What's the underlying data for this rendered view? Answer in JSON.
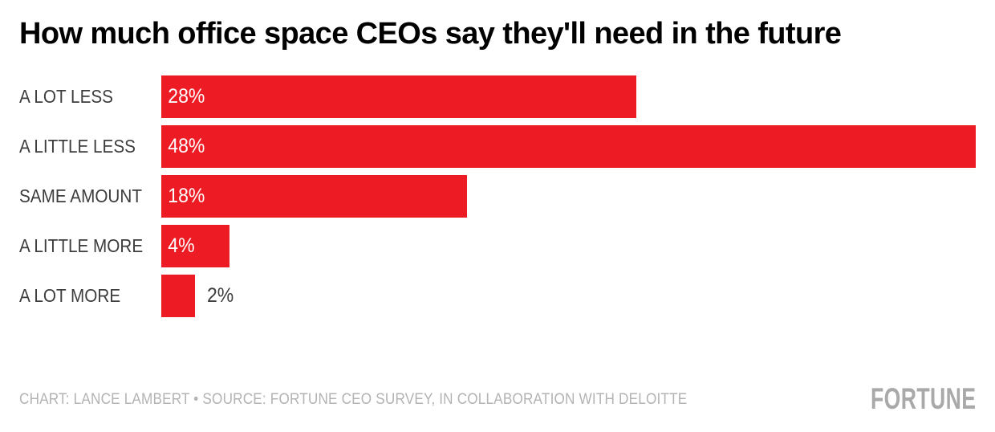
{
  "page": {
    "background": "#ffffff"
  },
  "header": {
    "title": "How much office space CEOs say they'll need in the future"
  },
  "chart_data": {
    "type": "bar",
    "orientation": "horizontal",
    "title": "How much office space CEOs say they'll need in the future",
    "categories": [
      "A LOT LESS",
      "A LITTLE LESS",
      "SAME AMOUNT",
      "A LITTLE MORE",
      "A LOT MORE"
    ],
    "values": [
      28,
      48,
      18,
      4,
      2
    ],
    "value_labels": [
      "28%",
      "48%",
      "18%",
      "4%",
      "2%"
    ],
    "xlim": [
      0,
      48
    ],
    "xlabel": "",
    "ylabel": "",
    "grid": false,
    "legend": false,
    "bar_color": "#ed1c24",
    "inside_label_color": "#ffffff",
    "outside_label_color": "#3d3d3d"
  },
  "footer": {
    "credit": "CHART: LANCE LAMBERT • SOURCE: FORTUNE CEO SURVEY, IN COLLABORATION WITH DELOITTE",
    "logo": "FORTUNE"
  }
}
